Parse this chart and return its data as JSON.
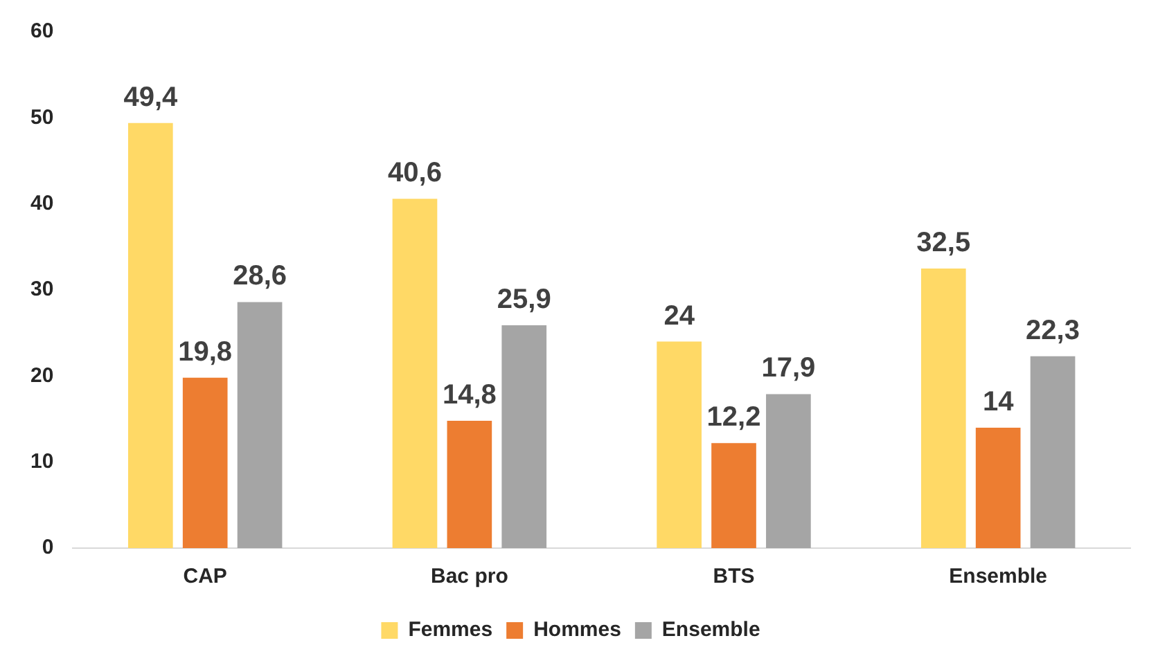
{
  "chart_data": {
    "type": "bar",
    "categories": [
      "CAP",
      "Bac pro",
      "BTS",
      "Ensemble"
    ],
    "series": [
      {
        "name": "Femmes",
        "color": "#ffd966",
        "values": [
          49.4,
          40.6,
          24,
          32.5
        ],
        "value_labels": [
          "49,4",
          "40,6",
          "24",
          "32,5"
        ]
      },
      {
        "name": "Hommes",
        "color": "#ed7d31",
        "values": [
          19.8,
          14.8,
          12.2,
          14
        ],
        "value_labels": [
          "19,8",
          "14,8",
          "12,2",
          "14"
        ]
      },
      {
        "name": "Ensemble",
        "color": "#a5a5a5",
        "values": [
          28.6,
          25.9,
          17.9,
          22.3
        ],
        "value_labels": [
          "28,6",
          "25,9",
          "17,9",
          "22,3"
        ]
      }
    ],
    "ylim": [
      0,
      60
    ],
    "yticks": [
      0,
      10,
      20,
      30,
      40,
      50,
      60
    ],
    "grid": false,
    "legend": "bottom"
  }
}
